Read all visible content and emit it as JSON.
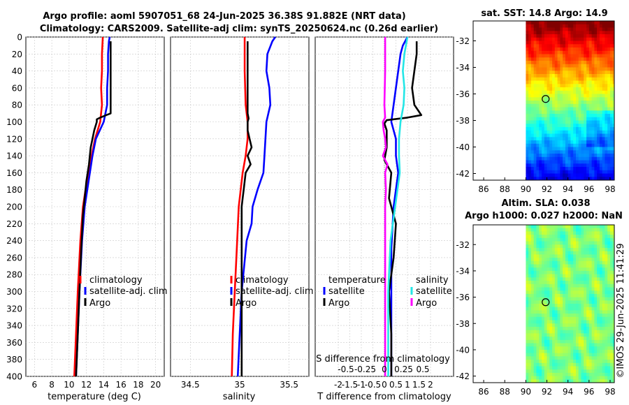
{
  "header": {
    "line1": "Argo profile: aoml 5907051_68 24-Jun-2025 36.38S 91.882E (NRT data)",
    "line2": "Climatology: CARS2009. Satellite-adj clim: synTS_20250624.nc (0.26d earlier)"
  },
  "colors": {
    "climatology": "#ff0000",
    "satellite": "#0000ff",
    "argo": "#000000",
    "sal_satellite": "#22e6e6",
    "sal_argo": "#ff00ff"
  },
  "chart_data": [
    {
      "type": "line",
      "id": "temperature",
      "xlabel": "temperature (deg C)",
      "ylabel": "",
      "xlim": [
        5,
        21
      ],
      "ylim": [
        400,
        0
      ],
      "xticks": [
        "6",
        "8",
        "10",
        "12",
        "14",
        "16",
        "18",
        "20"
      ],
      "yticks": [
        "0",
        "20",
        "40",
        "60",
        "80",
        "100",
        "120",
        "140",
        "160",
        "180",
        "200",
        "220",
        "240",
        "260",
        "280",
        "300",
        "320",
        "340",
        "360",
        "380",
        "400"
      ],
      "legend": [
        "climatology",
        "satellite-adj. clim",
        "Argo"
      ],
      "series": [
        {
          "name": "climatology",
          "depth": [
            0,
            20,
            40,
            60,
            80,
            100,
            120,
            140,
            160,
            180,
            200,
            240,
            300,
            350,
            400
          ],
          "values": [
            13.9,
            13.8,
            13.8,
            13.7,
            13.8,
            13.6,
            13.0,
            12.6,
            12.3,
            11.9,
            11.6,
            11.3,
            11.0,
            10.8,
            10.6
          ]
        },
        {
          "name": "satellite-adj. clim",
          "depth": [
            0,
            5,
            20,
            40,
            60,
            80,
            100,
            120,
            140,
            160,
            180,
            200,
            240,
            300,
            350,
            400
          ],
          "values": [
            14.7,
            14.6,
            14.5,
            14.5,
            14.4,
            14.4,
            14.0,
            13.1,
            12.7,
            12.4,
            12.1,
            11.8,
            11.5,
            11.2,
            11.0,
            10.8
          ]
        },
        {
          "name": "Argo",
          "depth": [
            5,
            20,
            40,
            60,
            80,
            90,
            92,
            95,
            97,
            100,
            110,
            130,
            150,
            170,
            190,
            210,
            250,
            300,
            350,
            400
          ],
          "values": [
            14.8,
            14.8,
            14.8,
            14.8,
            14.8,
            14.8,
            14.3,
            13.6,
            13.2,
            13.2,
            12.9,
            12.5,
            12.3,
            12.0,
            11.8,
            11.6,
            11.4,
            11.2,
            11.0,
            10.8
          ]
        }
      ]
    },
    {
      "type": "line",
      "id": "salinity",
      "xlabel": "salinity",
      "xlim": [
        34.3,
        35.7
      ],
      "ylim": [
        400,
        0
      ],
      "xticks": [
        "34.5",
        "35",
        "35.5"
      ],
      "legend": [
        "climatology",
        "satellite-adj. clim",
        "Argo"
      ],
      "series": [
        {
          "name": "climatology",
          "depth": [
            0,
            40,
            80,
            100,
            120,
            140,
            160,
            200,
            250,
            300,
            350,
            400
          ],
          "values": [
            35.05,
            35.05,
            35.06,
            35.08,
            35.08,
            35.06,
            35.03,
            34.99,
            34.97,
            34.95,
            34.93,
            34.92
          ]
        },
        {
          "name": "satellite-adj. clim",
          "depth": [
            0,
            5,
            20,
            40,
            60,
            80,
            100,
            120,
            140,
            160,
            180,
            200,
            220,
            240,
            300,
            350,
            400
          ],
          "values": [
            35.36,
            35.33,
            35.28,
            35.27,
            35.3,
            35.31,
            35.27,
            35.26,
            35.25,
            35.24,
            35.18,
            35.13,
            35.12,
            35.07,
            35.02,
            35.0,
            34.98
          ]
        },
        {
          "name": "Argo",
          "depth": [
            5,
            50,
            90,
            96,
            100,
            110,
            120,
            130,
            140,
            150,
            160,
            170,
            180,
            190,
            200,
            250,
            300,
            350,
            400
          ],
          "values": [
            35.08,
            35.08,
            35.08,
            35.09,
            35.08,
            35.08,
            35.1,
            35.12,
            35.08,
            35.11,
            35.06,
            35.05,
            35.04,
            35.03,
            35.02,
            35.02,
            35.02,
            35.02,
            35.02
          ]
        }
      ]
    },
    {
      "type": "line",
      "id": "differences",
      "xlabel": "T difference from climatology",
      "x2label": "S difference from climatology",
      "xlim": [
        -3,
        3
      ],
      "x2lim": [
        -0.9,
        0.9
      ],
      "ylim": [
        400,
        0
      ],
      "xticks": [
        "-2",
        "-1.5",
        "-1",
        "-0.5",
        "0",
        "0.5",
        "1",
        "1.5",
        "2"
      ],
      "x2ticks": [
        "-0.5",
        "-0.25",
        "0",
        "0.25",
        "0.5"
      ],
      "legend_left_title": "temperature",
      "legend_left": [
        "satellite",
        "Argo"
      ],
      "legend_right_title": "salinity",
      "legend_right": [
        "satellite",
        "Argo"
      ],
      "series": [
        {
          "name": "temperature satellite",
          "axis": "T",
          "depth": [
            0,
            10,
            20,
            40,
            60,
            80,
            100,
            120,
            140,
            160,
            180,
            200,
            250,
            300,
            350,
            400
          ],
          "values": [
            1.0,
            0.8,
            0.7,
            0.6,
            0.5,
            0.4,
            0.3,
            0.5,
            0.5,
            0.6,
            0.5,
            0.4,
            0.3,
            0.3,
            0.3,
            0.3
          ]
        },
        {
          "name": "temperature Argo",
          "axis": "T",
          "depth": [
            5,
            20,
            40,
            60,
            80,
            88,
            92,
            95,
            98,
            102,
            110,
            130,
            145,
            160,
            190,
            220,
            260,
            300,
            350,
            400
          ],
          "values": [
            1.4,
            1.4,
            1.3,
            1.2,
            1.3,
            1.5,
            1.6,
            1.0,
            0.1,
            0.0,
            0.1,
            0.1,
            0.0,
            0.3,
            0.2,
            0.5,
            0.4,
            0.2,
            0.3,
            0.3
          ]
        },
        {
          "name": "salinity satellite",
          "axis": "S",
          "depth": [
            0,
            10,
            20,
            40,
            60,
            80,
            100,
            120,
            140,
            160,
            200,
            240,
            300,
            350,
            400
          ],
          "values": [
            0.3,
            0.28,
            0.26,
            0.24,
            0.26,
            0.25,
            0.21,
            0.19,
            0.19,
            0.2,
            0.14,
            0.08,
            0.05,
            0.05,
            0.05
          ]
        },
        {
          "name": "salinity Argo",
          "axis": "S",
          "depth": [
            0,
            40,
            80,
            95,
            100,
            110,
            120,
            130,
            140,
            150,
            160,
            180,
            200,
            250,
            300,
            350,
            400
          ],
          "values": [
            0.01,
            0.01,
            0.0,
            0.01,
            -0.02,
            -0.01,
            0.01,
            0.02,
            -0.02,
            0.04,
            0.01,
            0.02,
            0.01,
            0.01,
            0.01,
            0.01,
            0.01
          ]
        }
      ]
    }
  ],
  "maps": [
    {
      "id": "sst",
      "title": "sat. SST: 14.8 Argo: 14.9",
      "lon_ticks": [
        "86",
        "88",
        "90",
        "92",
        "94",
        "96",
        "98"
      ],
      "lat_ticks": [
        "-32",
        "-34",
        "-36",
        "-38",
        "-40",
        "-42"
      ],
      "lon_range": [
        85,
        98.4
      ],
      "lat_range": [
        -30.5,
        -42.5
      ],
      "data_lon_start": 90,
      "marker": {
        "lon": 91.882,
        "lat": -36.38
      }
    },
    {
      "id": "sla",
      "title1": "Altim. SLA: 0.038",
      "title2": "Argo h1000: 0.027 h2000: NaN",
      "lon_ticks": [
        "86",
        "88",
        "90",
        "92",
        "94",
        "96",
        "98"
      ],
      "lat_ticks": [
        "-32",
        "-34",
        "-36",
        "-38",
        "-40",
        "-42"
      ],
      "lon_range": [
        85,
        98.4
      ],
      "lat_range": [
        -30.5,
        -42.5
      ],
      "data_lon_start": 90,
      "marker": {
        "lon": 91.882,
        "lat": -36.38
      }
    }
  ],
  "footer": {
    "credit": "©IMOS 29-Jun-2025 11:41:29"
  }
}
